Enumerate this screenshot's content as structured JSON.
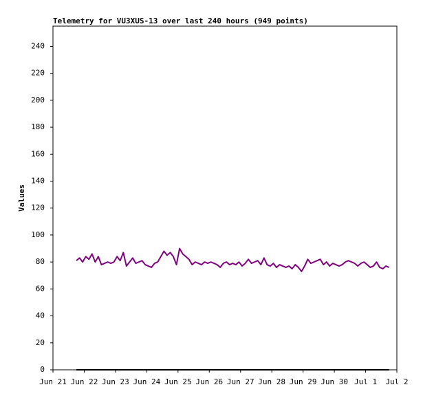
{
  "chart_data": {
    "type": "line",
    "title": "Telemetry for VU3XUS-13 over last 240 hours (949 points)",
    "y_label": "Values",
    "xlim": [
      0,
      11
    ],
    "xticks": [
      {
        "value": 0,
        "label": "Jun 21"
      },
      {
        "value": 1,
        "label": "Jun 22"
      },
      {
        "value": 2,
        "label": "Jun 23"
      },
      {
        "value": 3,
        "label": "Jun 24"
      },
      {
        "value": 4,
        "label": "Jun 25"
      },
      {
        "value": 5,
        "label": "Jun 26"
      },
      {
        "value": 6,
        "label": "Jun 27"
      },
      {
        "value": 7,
        "label": "Jun 28"
      },
      {
        "value": 8,
        "label": "Jun 29"
      },
      {
        "value": 9,
        "label": "Jun 30"
      },
      {
        "value": 10,
        "label": "Jul 1"
      },
      {
        "value": 11,
        "label": "Jul 2"
      }
    ],
    "ylim": [
      0,
      255
    ],
    "yticks": [
      0,
      20,
      40,
      60,
      80,
      100,
      120,
      140,
      160,
      180,
      200,
      220,
      240
    ],
    "x": [
      0.75,
      0.85,
      0.95,
      1.05,
      1.15,
      1.25,
      1.35,
      1.45,
      1.55,
      1.65,
      1.75,
      1.85,
      1.95,
      2.05,
      2.15,
      2.25,
      2.35,
      2.45,
      2.55,
      2.65,
      2.75,
      2.85,
      2.95,
      3.05,
      3.15,
      3.25,
      3.35,
      3.45,
      3.55,
      3.65,
      3.75,
      3.85,
      3.95,
      4.05,
      4.15,
      4.25,
      4.35,
      4.45,
      4.55,
      4.65,
      4.75,
      4.85,
      4.95,
      5.05,
      5.15,
      5.25,
      5.35,
      5.45,
      5.55,
      5.65,
      5.75,
      5.85,
      5.95,
      6.05,
      6.15,
      6.25,
      6.35,
      6.45,
      6.55,
      6.65,
      6.75,
      6.85,
      6.95,
      7.05,
      7.15,
      7.25,
      7.35,
      7.45,
      7.55,
      7.65,
      7.75,
      7.85,
      7.95,
      8.05,
      8.15,
      8.25,
      8.35,
      8.45,
      8.55,
      8.65,
      8.75,
      8.85,
      8.95,
      9.05,
      9.15,
      9.25,
      9.35,
      9.45,
      9.55,
      9.65,
      9.75,
      9.85,
      9.95,
      10.05,
      10.15,
      10.25,
      10.35,
      10.45,
      10.55,
      10.65,
      10.75
    ],
    "series": [
      {
        "color": "#800080",
        "values": [
          81,
          83,
          80,
          84,
          82,
          86,
          80,
          84,
          78,
          79,
          80,
          79,
          80,
          84,
          81,
          87,
          77,
          80,
          83,
          79,
          80,
          81,
          78,
          77,
          76,
          79,
          80,
          84,
          88,
          85,
          87,
          84,
          78,
          90,
          86,
          84,
          82,
          78,
          80,
          79,
          78,
          80,
          79,
          80,
          79,
          78,
          76,
          79,
          80,
          78,
          79,
          78,
          80,
          77,
          79,
          82,
          79,
          80,
          81,
          78,
          83,
          78,
          77,
          79,
          76,
          78,
          77,
          76,
          77,
          75,
          78,
          76,
          73,
          77,
          82,
          79,
          80,
          81,
          82,
          78,
          80,
          77,
          79,
          78,
          77,
          78,
          80,
          81,
          80,
          79,
          77,
          79,
          80,
          78,
          76,
          77,
          80,
          76,
          75,
          77,
          76
        ]
      },
      {
        "color": "#000000",
        "values": [
          0,
          0,
          0,
          0,
          0,
          0,
          0,
          0,
          0,
          0,
          0,
          0,
          0,
          0,
          0,
          0,
          0,
          0,
          0,
          0,
          0,
          0,
          0,
          0,
          0,
          0,
          0,
          0,
          0,
          0,
          0,
          0,
          0,
          0,
          0,
          0,
          0,
          0,
          0,
          0,
          0,
          0,
          0,
          0,
          0,
          0,
          0,
          0,
          0,
          0,
          0,
          0,
          0,
          0,
          0,
          0,
          0,
          0,
          0,
          0,
          0,
          0,
          0,
          0,
          0,
          0,
          0,
          0,
          0,
          0,
          0,
          0,
          0,
          0,
          0,
          0,
          0,
          0,
          0,
          0,
          0,
          0,
          0,
          0,
          0,
          0,
          0,
          0,
          0,
          0,
          0,
          0,
          0,
          0,
          0,
          0,
          0,
          0,
          0,
          0,
          0
        ]
      }
    ]
  }
}
